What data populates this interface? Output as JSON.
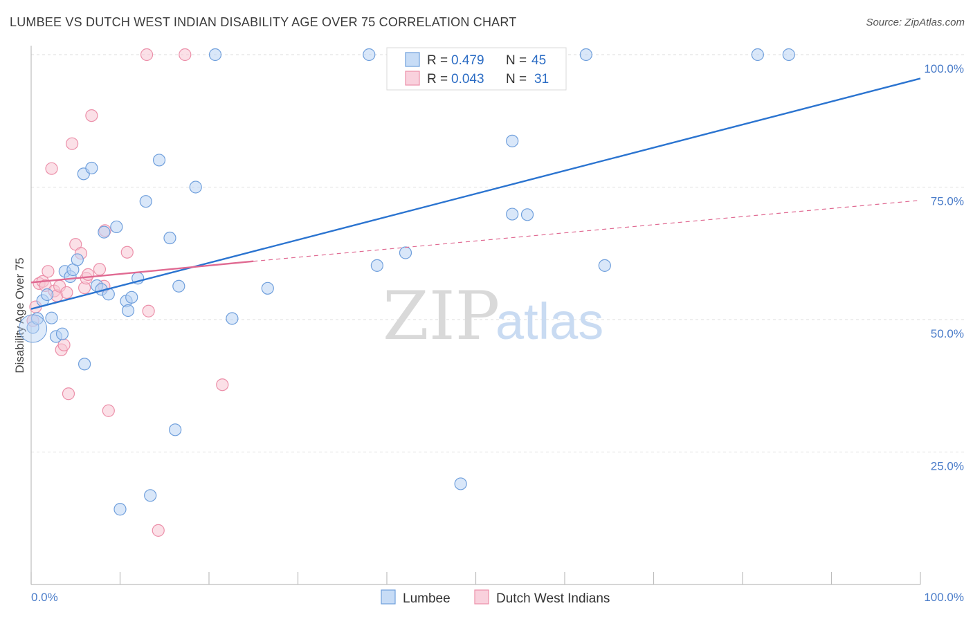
{
  "title": "LUMBEE VS DUTCH WEST INDIAN DISABILITY AGE OVER 75 CORRELATION CHART",
  "source": "Source: ZipAtlas.com",
  "watermark": {
    "zip": "ZIP",
    "atlas": "atlas"
  },
  "colors": {
    "blue_fill": "#b9d3f4",
    "blue_stroke": "#6f9fdc",
    "blue_line": "#2b74d0",
    "pink_fill": "#f8c6d4",
    "pink_stroke": "#ec8fa9",
    "pink_line": "#e06a92",
    "value_text": "#2b6cc4"
  },
  "legend": {
    "rows": [
      {
        "r_label": "R =",
        "r_value": "0.479",
        "n_label": "N =",
        "n_value": "45"
      },
      {
        "r_label": "R =",
        "r_value": "0.043",
        "n_label": "N =",
        "n_value": "31"
      }
    ]
  },
  "chart_data": {
    "type": "scatter",
    "title": "LUMBEE VS DUTCH WEST INDIAN DISABILITY AGE OVER 75 CORRELATION CHART",
    "xlabel": "",
    "ylabel": "Disability Age Over 75",
    "xlim": [
      0,
      100
    ],
    "ylim": [
      0,
      100
    ],
    "x_tick_labels": [
      "0.0%",
      "100.0%"
    ],
    "y_tick_labels": [
      "25.0%",
      "50.0%",
      "75.0%",
      "100.0%"
    ],
    "y_ticks": [
      25,
      50,
      75,
      100
    ],
    "grid": "horizontal dashed",
    "legend_position": "top-center",
    "series": [
      {
        "name": "Lumbee",
        "R": 0.479,
        "N": 45,
        "trend": {
          "x0": 0,
          "y0": 52.0,
          "x1": 100,
          "y1": 95.5
        },
        "points": [
          [
            0.2,
            48.5
          ],
          [
            0.7,
            50.2
          ],
          [
            1.3,
            53.6
          ],
          [
            1.8,
            54.7
          ],
          [
            2.3,
            50.3
          ],
          [
            2.8,
            46.8
          ],
          [
            3.5,
            47.3
          ],
          [
            3.8,
            59.1
          ],
          [
            4.4,
            58.1
          ],
          [
            4.7,
            59.4
          ],
          [
            5.2,
            61.3
          ],
          [
            5.9,
            77.5
          ],
          [
            6.0,
            41.6
          ],
          [
            6.8,
            78.6
          ],
          [
            7.4,
            56.4
          ],
          [
            7.9,
            55.7
          ],
          [
            8.2,
            66.5
          ],
          [
            8.7,
            54.8
          ],
          [
            9.6,
            67.5
          ],
          [
            10.0,
            14.2
          ],
          [
            10.7,
            53.5
          ],
          [
            10.9,
            51.7
          ],
          [
            11.3,
            54.2
          ],
          [
            12.0,
            57.8
          ],
          [
            12.9,
            72.3
          ],
          [
            13.4,
            16.8
          ],
          [
            14.4,
            80.1
          ],
          [
            15.6,
            65.4
          ],
          [
            16.2,
            29.2
          ],
          [
            16.6,
            56.3
          ],
          [
            18.5,
            75.0
          ],
          [
            20.7,
            100.0
          ],
          [
            22.6,
            50.2
          ],
          [
            26.6,
            55.9
          ],
          [
            38.0,
            100.0
          ],
          [
            38.9,
            60.2
          ],
          [
            42.1,
            62.6
          ],
          [
            48.3,
            19.0
          ],
          [
            54.1,
            83.7
          ],
          [
            54.1,
            69.9
          ],
          [
            55.8,
            69.8
          ],
          [
            62.4,
            100.0
          ],
          [
            64.5,
            60.2
          ],
          [
            81.7,
            100.0
          ],
          [
            85.2,
            100.0
          ]
        ]
      },
      {
        "name": "Dutch West Indians",
        "R": 0.043,
        "N": 31,
        "trend_solid": {
          "x0": 0,
          "y0": 57.0,
          "x1": 25,
          "y1": 61.0
        },
        "trend_dashed": {
          "x0": 25,
          "y0": 61.0,
          "x1": 100,
          "y1": 72.5
        },
        "points": [
          [
            0.2,
            49.8
          ],
          [
            0.5,
            52.4
          ],
          [
            0.9,
            56.8
          ],
          [
            1.3,
            57.2
          ],
          [
            1.6,
            56.4
          ],
          [
            1.9,
            59.1
          ],
          [
            2.3,
            78.5
          ],
          [
            2.6,
            55.4
          ],
          [
            2.9,
            54.5
          ],
          [
            3.2,
            56.3
          ],
          [
            3.4,
            44.3
          ],
          [
            3.7,
            45.2
          ],
          [
            4.0,
            55.1
          ],
          [
            4.2,
            36.0
          ],
          [
            4.6,
            83.2
          ],
          [
            5.0,
            64.2
          ],
          [
            5.6,
            62.5
          ],
          [
            6.0,
            56.0
          ],
          [
            6.2,
            57.8
          ],
          [
            6.4,
            58.5
          ],
          [
            6.8,
            88.5
          ],
          [
            7.7,
            59.5
          ],
          [
            8.2,
            56.3
          ],
          [
            8.3,
            66.8
          ],
          [
            8.7,
            32.8
          ],
          [
            10.8,
            62.7
          ],
          [
            13.2,
            51.6
          ],
          [
            13.0,
            100.0
          ],
          [
            14.3,
            10.2
          ],
          [
            17.3,
            100.0
          ],
          [
            21.5,
            37.7
          ]
        ]
      }
    ]
  }
}
